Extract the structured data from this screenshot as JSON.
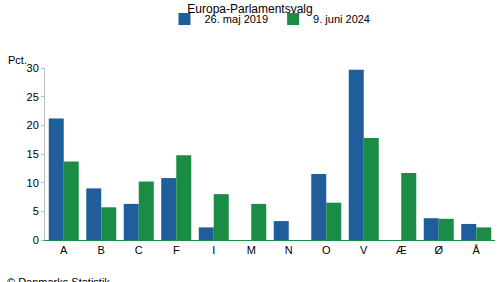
{
  "chart_data": {
    "type": "bar",
    "title": "Europa-Parlamentsvalg",
    "y_label": "Pct.",
    "source": "© Danmarks Statistik",
    "categories": [
      "A",
      "B",
      "C",
      "F",
      "I",
      "M",
      "N",
      "O",
      "V",
      "Æ",
      "Ø",
      "Å"
    ],
    "series": [
      {
        "name": "26. maj 2019",
        "color": "#1f5e9a",
        "values": [
          21.2,
          9.0,
          6.3,
          10.8,
          2.2,
          null,
          3.3,
          11.5,
          29.7,
          null,
          3.8,
          2.8
        ]
      },
      {
        "name": "9. juni 2024",
        "color": "#1a8c46",
        "values": [
          13.7,
          5.7,
          10.2,
          14.8,
          8.0,
          6.3,
          null,
          6.5,
          17.8,
          11.7,
          3.7,
          2.2
        ]
      }
    ],
    "ylim": [
      0,
      30
    ],
    "yticks": [
      0,
      5,
      10,
      15,
      20,
      25,
      30
    ],
    "grid": false,
    "legend": "top"
  }
}
